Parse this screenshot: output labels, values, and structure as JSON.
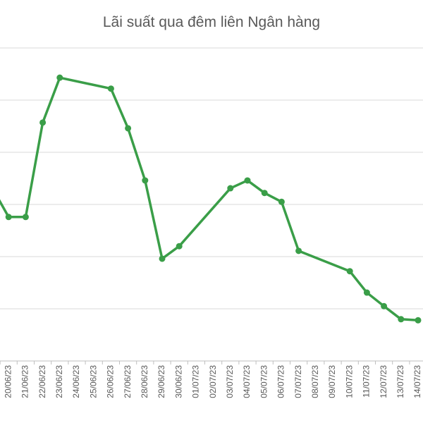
{
  "chart_data": {
    "type": "line",
    "title": "Lãi suất qua đêm liên Ngân hàng",
    "categories": [
      null,
      "20/06/23",
      "21/06/23",
      "22/06/23",
      "23/06/23",
      "24/06/23",
      "25/06/23",
      "26/06/23",
      "27/06/23",
      "28/06/23",
      "29/06/23",
      "30/06/23",
      "01/07/23",
      "02/07/23",
      "03/07/23",
      "04/07/23",
      "05/07/23",
      "06/07/23",
      "07/07/23",
      "08/07/23",
      "09/07/23",
      "10/07/23",
      "11/07/23",
      "12/07/23",
      "13/07/23",
      "14/07/23"
    ],
    "series": [
      {
        "color": "#3a9e48",
        "values": [
          3.34,
          2.76,
          2.76,
          4.57,
          5.43,
          null,
          null,
          5.22,
          4.46,
          3.46,
          1.96,
          2.2,
          null,
          null,
          3.31,
          3.46,
          3.22,
          3.05,
          2.11,
          null,
          null,
          1.72,
          1.31,
          1.05,
          0.8,
          0.78
        ]
      }
    ],
    "ylim": [
      0,
      6
    ],
    "yticks": [
      0,
      1,
      2,
      3,
      4,
      5,
      6
    ],
    "grid": true,
    "connect_gaps": true
  }
}
